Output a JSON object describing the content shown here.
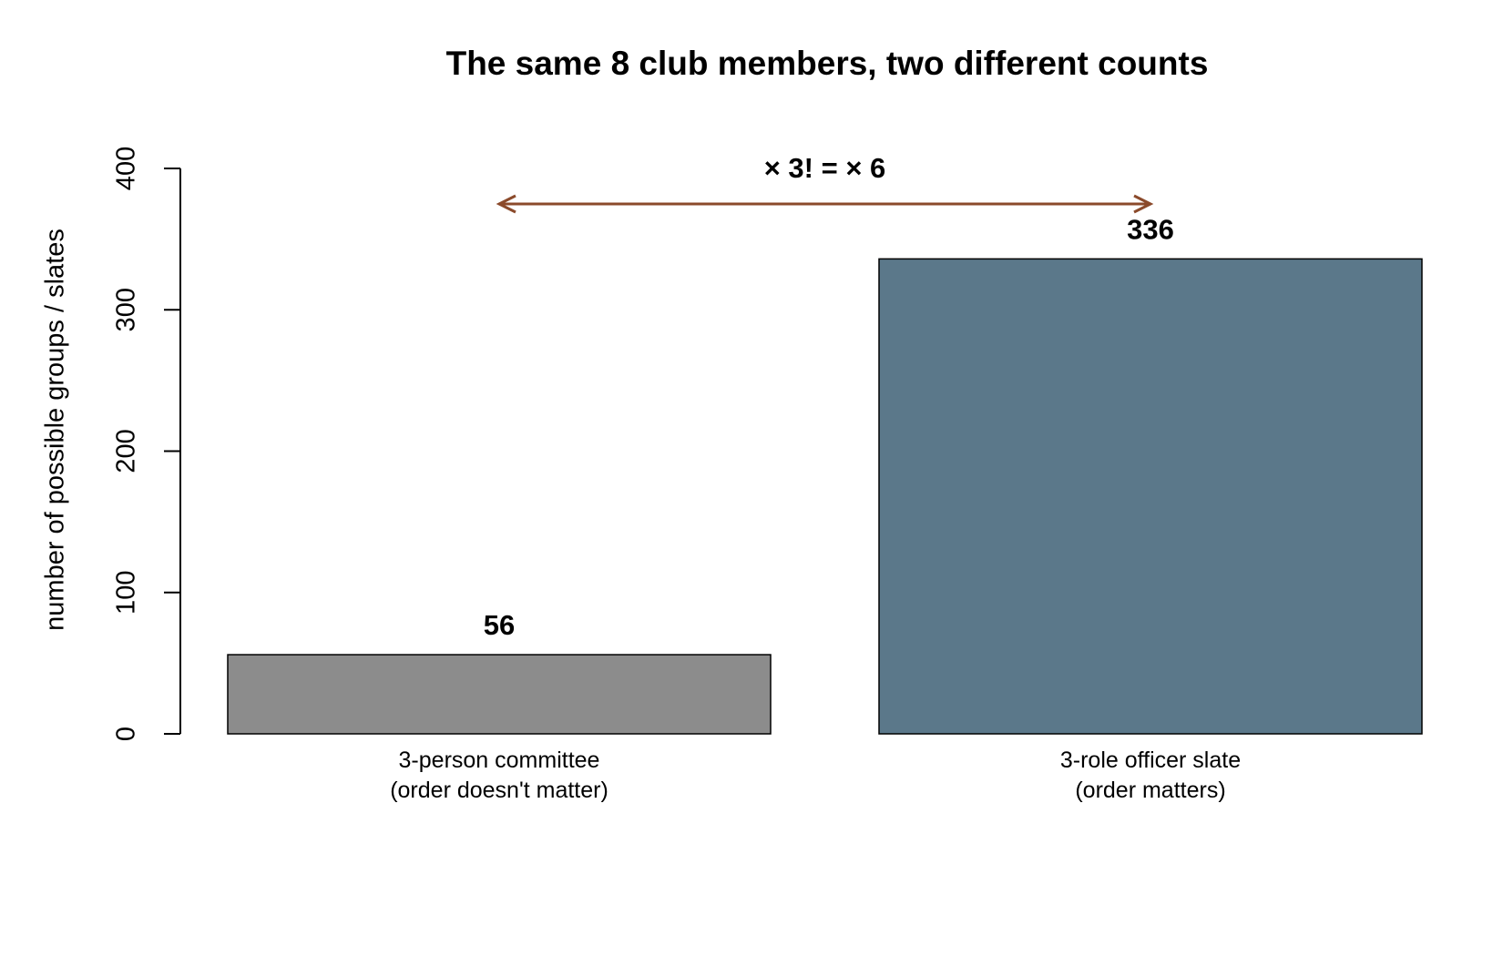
{
  "chart_data": {
    "type": "bar",
    "title": "The same 8 club members, two different counts",
    "y_label": "number of possible groups / slates",
    "categories": [
      "3-person committee\n(order doesn't matter)",
      "3-role officer slate\n(order matters)"
    ],
    "values": [
      56,
      336
    ],
    "colors": [
      "#8c8c8c",
      "#5b788a"
    ],
    "ylim": [
      0,
      400
    ],
    "yticks": [
      0,
      100,
      200,
      300,
      400
    ],
    "grid": false,
    "annotation": {
      "text": "× 3! = × 6",
      "color": "#8b4a2b"
    }
  }
}
